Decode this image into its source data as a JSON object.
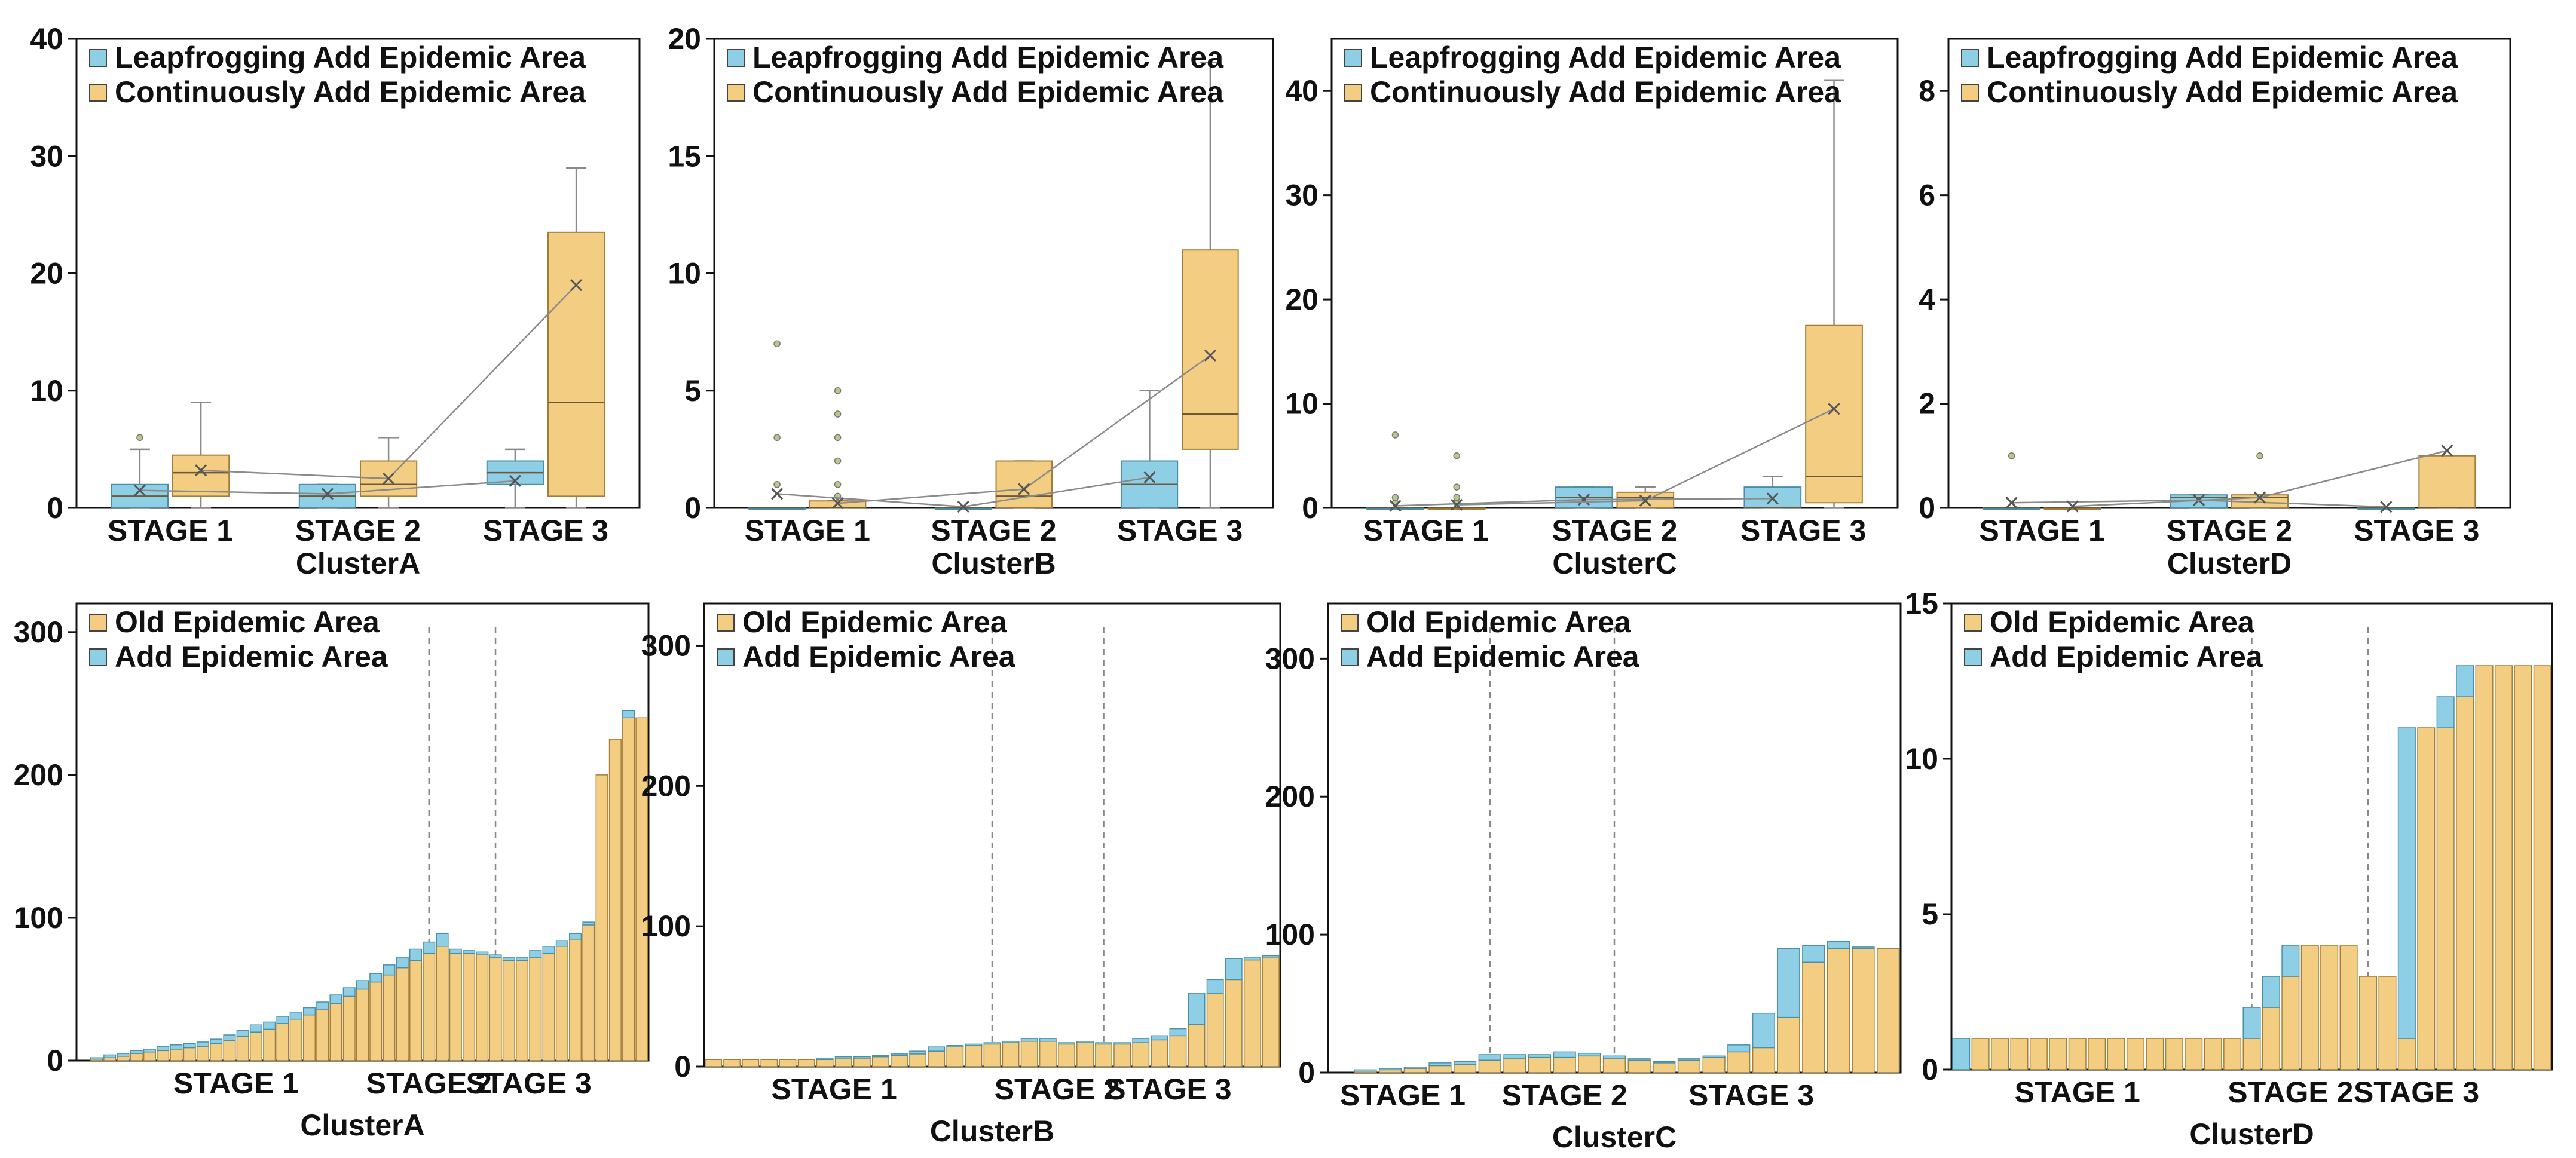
{
  "colors": {
    "blue": "#8ecfe5",
    "blue_edge": "#4a8fa8",
    "orange": "#f2cd82",
    "orange_edge": "#a47e36",
    "line": "#8a8a8a",
    "axis": "#111111"
  },
  "chart_data": [
    {
      "type": "box",
      "id": "boxA",
      "xlabel": "ClusterA",
      "ylim": [
        0,
        40
      ],
      "yticks": [
        0,
        10,
        20,
        30,
        40
      ],
      "categories": [
        "STAGE 1",
        "STAGE 2",
        "STAGE 3"
      ],
      "legend_position": "top-left",
      "series": [
        {
          "name": "Leapfrogging Add Epidemic Area",
          "color": "#8ecfe5",
          "boxes": [
            {
              "whisker_low": 0,
              "q1": 0,
              "median": 1,
              "q3": 2,
              "whisker_high": 5,
              "mean": 1.5,
              "outliers": [
                6
              ]
            },
            {
              "whisker_low": 0,
              "q1": 0,
              "median": 1,
              "q3": 2,
              "whisker_high": 2,
              "mean": 1.2,
              "outliers": []
            },
            {
              "whisker_low": 0,
              "q1": 2,
              "median": 3,
              "q3": 4,
              "whisker_high": 5,
              "mean": 2.3,
              "outliers": []
            }
          ]
        },
        {
          "name": "Continuously Add Epidemic Area",
          "color": "#f2cd82",
          "boxes": [
            {
              "whisker_low": 0,
              "q1": 1,
              "median": 3,
              "q3": 4.5,
              "whisker_high": 9,
              "mean": 3.2,
              "outliers": []
            },
            {
              "whisker_low": 0,
              "q1": 1,
              "median": 2,
              "q3": 4,
              "whisker_high": 6,
              "mean": 2.5,
              "outliers": []
            },
            {
              "whisker_low": 0,
              "q1": 1,
              "median": 9,
              "q3": 23.5,
              "whisker_high": 29,
              "mean": 19,
              "outliers": []
            }
          ]
        }
      ]
    },
    {
      "type": "box",
      "id": "boxB",
      "xlabel": "ClusterB",
      "ylim": [
        0,
        20
      ],
      "yticks": [
        0,
        5,
        10,
        15,
        20
      ],
      "categories": [
        "STAGE 1",
        "STAGE 2",
        "STAGE 3"
      ],
      "legend_position": "top-left",
      "series": [
        {
          "name": "Leapfrogging Add Epidemic Area",
          "color": "#8ecfe5",
          "boxes": [
            {
              "whisker_low": 0,
              "q1": 0,
              "median": 0,
              "q3": 0,
              "whisker_high": 0,
              "mean": 0.6,
              "outliers": [
                1,
                3,
                7
              ]
            },
            {
              "whisker_low": 0,
              "q1": 0,
              "median": 0,
              "q3": 0,
              "whisker_high": 0,
              "mean": 0.05,
              "outliers": []
            },
            {
              "whisker_low": 0,
              "q1": 0,
              "median": 1,
              "q3": 2,
              "whisker_high": 5,
              "mean": 1.3,
              "outliers": []
            }
          ]
        },
        {
          "name": "Continuously Add Epidemic Area",
          "color": "#f2cd82",
          "boxes": [
            {
              "whisker_low": 0,
              "q1": 0,
              "median": 0,
              "q3": 0.3,
              "whisker_high": 0.3,
              "mean": 0.2,
              "outliers": [
                0.5,
                1,
                2,
                3,
                4,
                5
              ]
            },
            {
              "whisker_low": 0,
              "q1": 0,
              "median": 0.5,
              "q3": 2,
              "whisker_high": 2,
              "mean": 0.8,
              "outliers": []
            },
            {
              "whisker_low": 0,
              "q1": 2.5,
              "median": 4,
              "q3": 11,
              "whisker_high": 19,
              "mean": 6.5,
              "outliers": []
            }
          ]
        }
      ]
    },
    {
      "type": "box",
      "id": "boxC",
      "xlabel": "ClusterC",
      "ylim": [
        0,
        45
      ],
      "yticks": [
        0,
        10,
        20,
        30,
        40
      ],
      "categories": [
        "STAGE 1",
        "STAGE 2",
        "STAGE 3"
      ],
      "legend_position": "top-left",
      "series": [
        {
          "name": "Leapfrogging Add Epidemic Area",
          "color": "#8ecfe5",
          "boxes": [
            {
              "whisker_low": 0,
              "q1": 0,
              "median": 0,
              "q3": 0,
              "whisker_high": 0,
              "mean": 0.2,
              "outliers": [
                0.5,
                1,
                7
              ]
            },
            {
              "whisker_low": 0,
              "q1": 0,
              "median": 1,
              "q3": 2,
              "whisker_high": 2,
              "mean": 0.8,
              "outliers": []
            },
            {
              "whisker_low": 0,
              "q1": 0,
              "median": 0,
              "q3": 2,
              "whisker_high": 3,
              "mean": 0.9,
              "outliers": []
            }
          ]
        },
        {
          "name": "Continuously Add Epidemic Area",
          "color": "#f2cd82",
          "boxes": [
            {
              "whisker_low": 0,
              "q1": 0,
              "median": 0,
              "q3": 0,
              "whisker_high": 0,
              "mean": 0.3,
              "outliers": [
                0.5,
                1,
                2,
                5
              ]
            },
            {
              "whisker_low": 0,
              "q1": 0,
              "median": 1,
              "q3": 1.5,
              "whisker_high": 2,
              "mean": 0.7,
              "outliers": []
            },
            {
              "whisker_low": 0,
              "q1": 0.5,
              "median": 3,
              "q3": 17.5,
              "whisker_high": 41,
              "mean": 9.5,
              "outliers": []
            }
          ]
        }
      ]
    },
    {
      "type": "box",
      "id": "boxD",
      "xlabel": "ClusterD",
      "ylim": [
        0,
        9
      ],
      "yticks": [
        0,
        2,
        4,
        6,
        8
      ],
      "categories": [
        "STAGE 1",
        "STAGE 2",
        "STAGE 3"
      ],
      "legend_position": "top-left",
      "series": [
        {
          "name": "Leapfrogging Add Epidemic Area",
          "color": "#8ecfe5",
          "boxes": [
            {
              "whisker_low": 0,
              "q1": 0,
              "median": 0,
              "q3": 0,
              "whisker_high": 0,
              "mean": 0.1,
              "outliers": [
                1
              ]
            },
            {
              "whisker_low": 0,
              "q1": 0,
              "median": 0.2,
              "q3": 0.25,
              "whisker_high": 0.25,
              "mean": 0.15,
              "outliers": []
            },
            {
              "whisker_low": 0,
              "q1": 0,
              "median": 0,
              "q3": 0,
              "whisker_high": 0,
              "mean": 0.02,
              "outliers": []
            }
          ]
        },
        {
          "name": "Continuously Add Epidemic Area",
          "color": "#f2cd82",
          "boxes": [
            {
              "whisker_low": 0,
              "q1": 0,
              "median": 0,
              "q3": 0,
              "whisker_high": 0,
              "mean": 0.03,
              "outliers": []
            },
            {
              "whisker_low": 0,
              "q1": 0,
              "median": 0.2,
              "q3": 0.25,
              "whisker_high": 0.25,
              "mean": 0.2,
              "outliers": [
                1
              ]
            },
            {
              "whisker_low": 0,
              "q1": 0,
              "median": 0,
              "q3": 1,
              "whisker_high": 1,
              "mean": 1.1,
              "outliers": []
            }
          ]
        }
      ]
    },
    {
      "type": "bar",
      "id": "barA",
      "stacked": true,
      "xlabel": "ClusterA",
      "ylim": [
        0,
        320
      ],
      "yticks": [
        0,
        100,
        200,
        300
      ],
      "legend_position": "top-left",
      "stage_labels": [
        {
          "label": "STAGE 1",
          "at": 12
        },
        {
          "label": "STAGE 2",
          "at": 26.5
        },
        {
          "label": "STAGE 3",
          "at": 34
        }
      ],
      "stage_dividers": [
        26.5,
        31.5
      ],
      "series": [
        {
          "name": "Old Epidemic Area",
          "color": "#f2cd82",
          "values": [
            0,
            1,
            2,
            3,
            5,
            6,
            7,
            8,
            9,
            10,
            12,
            14,
            17,
            20,
            22,
            26,
            29,
            32,
            36,
            40,
            45,
            50,
            55,
            60,
            65,
            70,
            75,
            80,
            75,
            75,
            74,
            72,
            70,
            70,
            72,
            75,
            80,
            85,
            95,
            200,
            225,
            240,
            240
          ]
        },
        {
          "name": "Add Epidemic Area",
          "color": "#8ecfe5",
          "values": [
            0,
            1,
            2,
            2,
            2,
            2,
            3,
            3,
            3,
            3,
            3,
            4,
            4,
            5,
            5,
            5,
            5,
            5,
            5,
            6,
            6,
            6,
            6,
            7,
            7,
            8,
            8,
            9,
            3,
            2,
            2,
            2,
            2,
            2,
            5,
            5,
            4,
            4,
            2,
            0,
            0,
            5,
            0
          ]
        }
      ]
    },
    {
      "type": "bar",
      "id": "barB",
      "stacked": true,
      "xlabel": "ClusterB",
      "ylim": [
        0,
        330
      ],
      "yticks": [
        0,
        100,
        200,
        300
      ],
      "legend_position": "top-left",
      "stage_labels": [
        {
          "label": "STAGE 1",
          "at": 7
        },
        {
          "label": "STAGE 2",
          "at": 19
        },
        {
          "label": "STAGE 3",
          "at": 25
        }
      ],
      "stage_dividers": [
        15.5,
        21.5
      ],
      "series": [
        {
          "name": "Old Epidemic Area",
          "color": "#f2cd82",
          "values": [
            5,
            5,
            5,
            5,
            5,
            5,
            5,
            6,
            6,
            7,
            8,
            9,
            11,
            14,
            15,
            16,
            17,
            18,
            18,
            16,
            17,
            16,
            16,
            17,
            19,
            22,
            30,
            52,
            62,
            76,
            78
          ]
        },
        {
          "name": "Add Epidemic Area",
          "color": "#8ecfe5",
          "values": [
            0,
            0,
            0,
            0,
            0,
            0,
            1,
            1,
            1,
            1,
            1,
            2,
            3,
            1,
            1,
            1,
            1,
            2,
            2,
            1,
            1,
            1,
            1,
            3,
            3,
            5,
            22,
            10,
            15,
            2,
            1
          ]
        }
      ]
    },
    {
      "type": "bar",
      "id": "barC",
      "stacked": true,
      "xlabel": "ClusterC",
      "ylim": [
        0,
        340
      ],
      "yticks": [
        0,
        100,
        200,
        300
      ],
      "legend_position": "top-left",
      "stage_labels": [
        {
          "label": "STAGE 1",
          "at": 3
        },
        {
          "label": "STAGE 2",
          "at": 9.5
        },
        {
          "label": "STAGE 3",
          "at": 17
        }
      ],
      "stage_dividers": [
        6.5,
        11.5
      ],
      "series": [
        {
          "name": "Old Epidemic Area",
          "color": "#f2cd82",
          "values": [
            0,
            1,
            2,
            3,
            5,
            6,
            9,
            10,
            11,
            11,
            12,
            10,
            9,
            7,
            9,
            11,
            15,
            18,
            40,
            80,
            90,
            90,
            90
          ]
        },
        {
          "name": "Add Epidemic Area",
          "color": "#8ecfe5",
          "values": [
            0,
            1,
            1,
            1,
            2,
            2,
            4,
            3,
            2,
            4,
            2,
            2,
            1,
            1,
            1,
            1,
            5,
            25,
            50,
            12,
            5,
            1,
            0
          ]
        }
      ]
    },
    {
      "type": "bar",
      "id": "barD",
      "stacked": true,
      "xlabel": "ClusterD",
      "ylim": [
        0,
        15
      ],
      "yticks": [
        0,
        5,
        10,
        15
      ],
      "legend_position": "top-left",
      "stage_labels": [
        {
          "label": "STAGE 1",
          "at": 6.5
        },
        {
          "label": "STAGE 2",
          "at": 17.5
        },
        {
          "label": "STAGE 3",
          "at": 24
        }
      ],
      "stage_dividers": [
        15.5,
        21.5
      ],
      "series": [
        {
          "name": "Old Epidemic Area",
          "color": "#f2cd82",
          "values": [
            0,
            1,
            1,
            1,
            1,
            1,
            1,
            1,
            1,
            1,
            1,
            1,
            1,
            1,
            1,
            1,
            2,
            3,
            4,
            4,
            4,
            3,
            3,
            1,
            11,
            11,
            12,
            13,
            13,
            13,
            13
          ]
        },
        {
          "name": "Add Epidemic Area",
          "color": "#8ecfe5",
          "values": [
            1,
            0,
            0,
            0,
            0,
            0,
            0,
            0,
            0,
            0,
            0,
            0,
            0,
            0,
            0,
            1,
            1,
            1,
            0,
            0,
            0,
            0,
            0,
            10,
            0,
            1,
            1,
            0,
            0,
            0,
            0
          ]
        }
      ]
    }
  ]
}
